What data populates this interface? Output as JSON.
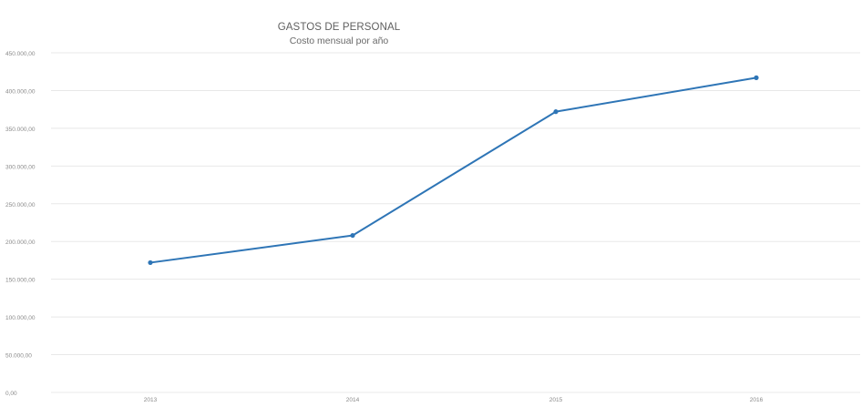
{
  "chart_data": {
    "type": "line",
    "title": "GASTOS DE PERSONAL",
    "subtitle": "Costo mensual por año",
    "categories": [
      "2013",
      "2014",
      "2015",
      "2016"
    ],
    "series": [
      {
        "values": [
          172000,
          208000,
          372000,
          417000
        ],
        "color": "#2e75b6"
      }
    ],
    "y_ticks": [
      0,
      50000,
      100000,
      150000,
      200000,
      250000,
      300000,
      350000,
      400000,
      450000
    ],
    "y_tick_labels": [
      "0,00",
      "50.000,00",
      "100.000,00",
      "150.000,00",
      "200.000,00",
      "250.000,00",
      "300.000,00",
      "350.000,00",
      "400.000,00",
      "450.000,00"
    ],
    "ylim": [
      0,
      450000
    ],
    "grid": true,
    "gridline_color": "#e8e8e8",
    "label_color": "#8a8a8a",
    "legend": "none"
  }
}
